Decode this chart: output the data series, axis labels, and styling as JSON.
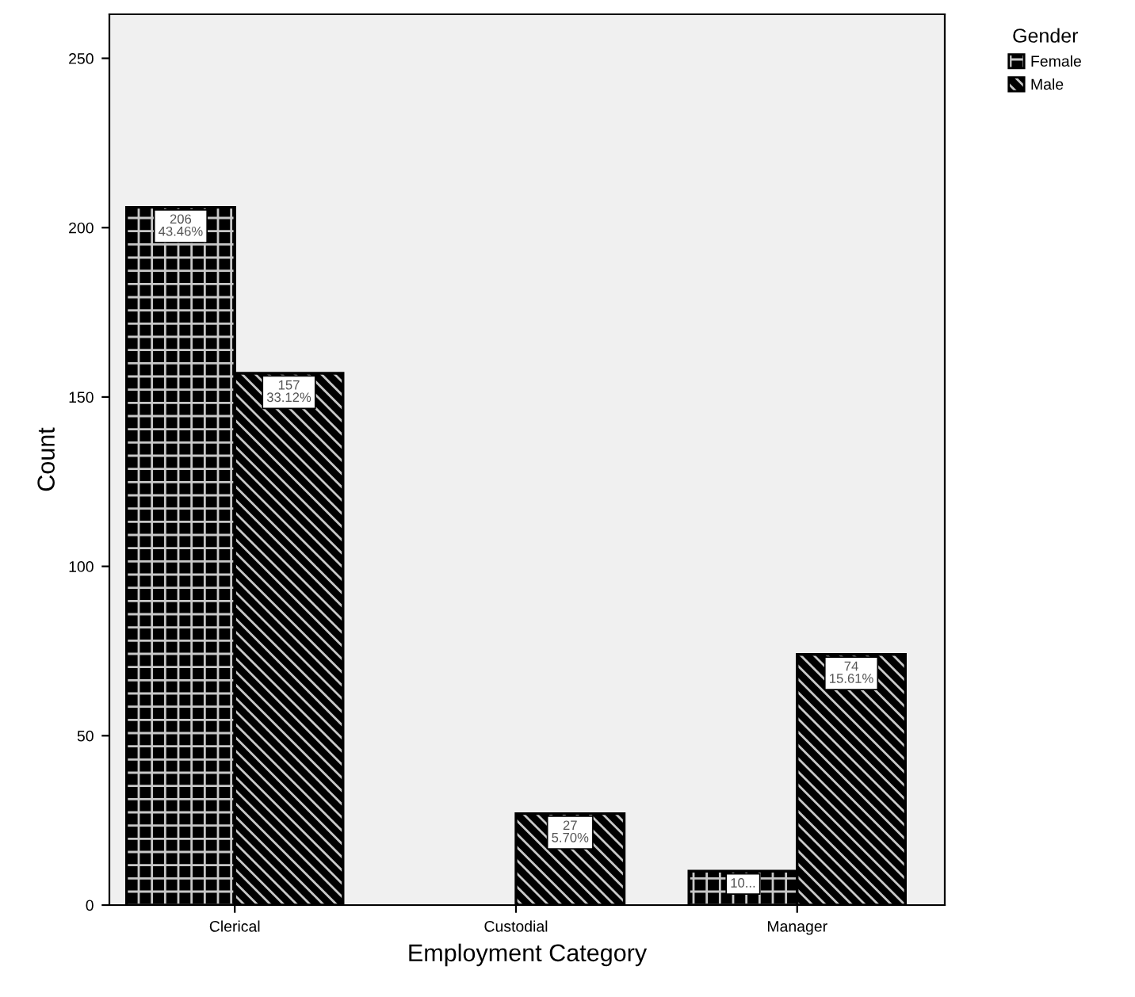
{
  "chart_data": {
    "type": "bar",
    "xlabel": "Employment Category",
    "ylabel": "Count",
    "legend_title": "Gender",
    "legend": "top right",
    "categories": [
      "Clerical",
      "Custodial",
      "Manager"
    ],
    "series": [
      {
        "name": "Female",
        "color": "#000000",
        "values": [
          206,
          null,
          10
        ],
        "value_labels": [
          "206\n43.46%",
          null,
          "10..."
        ]
      },
      {
        "name": "Male",
        "color": "#000000",
        "values": [
          157,
          27,
          74
        ],
        "value_labels": [
          "157\n33.12%",
          "27\n5.70%",
          "74\n15.61%"
        ]
      }
    ],
    "ylim": [
      0,
      263
    ],
    "yticks": [
      0,
      50,
      100,
      150,
      200,
      250
    ],
    "grid": false
  }
}
